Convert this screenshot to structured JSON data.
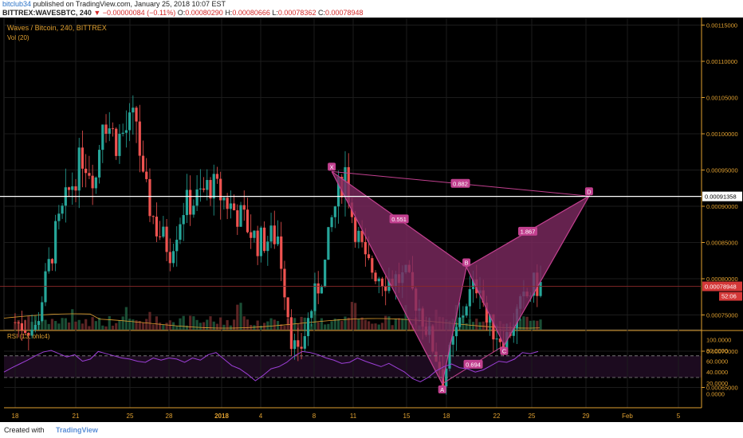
{
  "header": {
    "user": "bitclub34",
    "published": "published on TradingView.com, January 25, 2018 10:07 EST",
    "symbol": "BITTREX:WAVESBTC, 240",
    "change": "▼ −0.00000084 (−0.11%)",
    "o_label": "O:",
    "o_value": "0.00080290",
    "h_label": "H:",
    "h_value": "0.00080666",
    "l_label": "L:",
    "l_value": "0.00078362",
    "c_label": "C:",
    "c_value": "0.00078948"
  },
  "footer": {
    "created_with": "Created with",
    "brand": "TradingView"
  },
  "colors": {
    "up": "#26a69a",
    "down": "#ef5350",
    "pattern": "#c2408f",
    "pattern_fill": "#7e2a62",
    "rsi": "#9c3fd6",
    "axis_text": "#e0a030"
  },
  "chart_data": [
    {
      "type": "candlestick",
      "title": "Waves / Bitcoin, 240, BITTREX",
      "subtitle": "Vol (20)",
      "ylim": [
        0.00062,
        0.00116
      ],
      "y_ticks": [
        "0.00115000",
        "0.00110000",
        "0.00105000",
        "0.00100000",
        "0.00095000",
        "0.00090000",
        "0.00085000",
        "0.00080000",
        "0.00075000",
        "0.00070000",
        "0.00065000"
      ],
      "x_ticks": [
        "18",
        "21",
        "25",
        "28",
        "2018",
        "4",
        "8",
        "11",
        "15",
        "18",
        "22",
        "25",
        "29",
        "Feb",
        "5"
      ],
      "price_line_levels": [
        {
          "value": 0.00091358,
          "label": "0.00091358"
        },
        {
          "value": 0.00078948,
          "label": "0.00078948"
        }
      ],
      "countdown": "52:06",
      "pattern": [
        {
          "label": "X",
          "date": "Jan 9",
          "price": 0.000948
        },
        {
          "label": "A",
          "date": "Jan 17",
          "price": 0.000655
        },
        {
          "label": "B",
          "date": "Jan 19",
          "price": 0.000816
        },
        {
          "label": "C",
          "date": "Jan 22",
          "price": 0.000708
        },
        {
          "label": "D",
          "date": "Jan 28",
          "price": 0.000914
        }
      ],
      "ratios": [
        "0.882",
        "0.551",
        "1.867",
        "0.694"
      ],
      "grid": true,
      "volume": "bars under price (relative)"
    },
    {
      "type": "line",
      "title": "RSI (13, ohlc4)",
      "ylim": [
        0,
        100
      ],
      "y_ticks": [
        "100.0000",
        "80.0000",
        "60.0000",
        "40.0000",
        "20.0000",
        "0.0000"
      ],
      "bands": [
        70,
        30
      ],
      "series": [
        {
          "values": [
            40,
            48,
            55,
            62,
            70,
            77,
            80,
            74,
            68,
            72,
            60,
            64,
            78,
            74,
            70,
            66,
            64,
            60,
            58,
            66,
            62,
            66,
            64,
            58,
            66,
            62,
            72,
            76,
            64,
            52,
            46,
            36,
            24,
            34,
            46,
            50,
            58,
            70,
            78,
            76,
            72,
            66,
            62,
            56,
            58,
            66,
            60,
            55,
            50,
            56,
            48,
            40,
            28,
            22,
            30,
            42,
            50,
            55,
            48,
            46,
            40,
            44,
            52,
            60,
            58,
            64,
            76,
            74,
            78
          ]
        }
      ]
    }
  ]
}
